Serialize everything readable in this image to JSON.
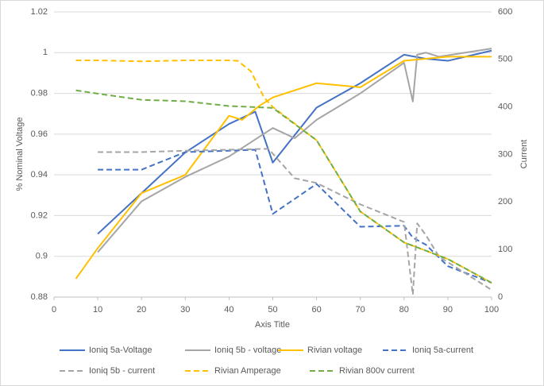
{
  "chart_data": {
    "type": "line",
    "xlabel": "Axis Title",
    "ylabel": "% Nominal Voltage",
    "y2label": "Current",
    "xlim": [
      0,
      100
    ],
    "xticks": [
      0,
      10,
      20,
      30,
      40,
      50,
      60,
      70,
      80,
      90,
      100
    ],
    "ylim": [
      0.88,
      1.02
    ],
    "yticks": [
      0.88,
      0.9,
      0.92,
      0.94,
      0.96,
      0.98,
      1,
      1.02
    ],
    "y2lim": [
      0,
      600
    ],
    "y2ticks": [
      0,
      100,
      200,
      300,
      400,
      500,
      600
    ],
    "grid": true,
    "legend": "bottom",
    "series": [
      {
        "name": "Ioniq 5a-Voltage",
        "color": "#4472c4",
        "dashed": false,
        "x": [
          10,
          20,
          30,
          40,
          46,
          50,
          60,
          70,
          80,
          85,
          90,
          100
        ],
        "values": [
          0.911,
          0.931,
          0.951,
          0.965,
          0.971,
          0.946,
          0.973,
          0.985,
          0.999,
          0.997,
          0.996,
          1.001
        ]
      },
      {
        "name": "Ioniq 5b - voltage",
        "color": "#a5a5a5",
        "dashed": false,
        "x": [
          10,
          20,
          30,
          40,
          50,
          55,
          60,
          70,
          80,
          82,
          83,
          85,
          88,
          100
        ],
        "values": [
          0.902,
          0.927,
          0.939,
          0.949,
          0.963,
          0.958,
          0.967,
          0.98,
          0.995,
          0.976,
          0.999,
          1.0,
          0.998,
          1.002
        ]
      },
      {
        "name": "Rivian voltage",
        "color": "#ffc000",
        "dashed": false,
        "x": [
          5,
          10,
          20,
          30,
          40,
          43,
          47,
          50,
          60,
          70,
          80,
          90,
          100
        ],
        "values": [
          0.889,
          0.904,
          0.931,
          0.94,
          0.969,
          0.967,
          0.974,
          0.978,
          0.985,
          0.983,
          0.996,
          0.998,
          0.998
        ]
      },
      {
        "name": "Ioniq 5a-current",
        "color": "#4472c4",
        "dashed": true,
        "axis": "y2",
        "x": [
          10,
          20,
          30,
          40,
          46,
          50,
          60,
          70,
          80,
          82,
          85,
          90,
          100
        ],
        "values": [
          268,
          268,
          305,
          308,
          310,
          175,
          238,
          148,
          150,
          125,
          110,
          65,
          30
        ]
      },
      {
        "name": "Ioniq 5b - current",
        "color": "#a5a5a5",
        "dashed": true,
        "axis": "y2",
        "x": [
          10,
          20,
          30,
          40,
          49,
          55,
          60,
          70,
          80,
          82,
          83,
          85,
          88,
          100
        ],
        "values": [
          305,
          305,
          308,
          310,
          312,
          250,
          240,
          195,
          158,
          5,
          155,
          130,
          85,
          15
        ]
      },
      {
        "name": "Rivian Amperage",
        "color": "#ffc000",
        "dashed": true,
        "axis": "y2",
        "x": [
          5,
          10,
          20,
          30,
          40,
          42,
          45,
          48,
          50,
          60,
          70,
          80,
          90,
          100
        ],
        "values": [
          498,
          498,
          496,
          498,
          498,
          497,
          475,
          420,
          400,
          330,
          180,
          115,
          80,
          30
        ]
      },
      {
        "name": "Rivian 800v current",
        "color": "#70ad47",
        "dashed": true,
        "axis": "y2",
        "x": [
          5,
          10,
          20,
          30,
          40,
          50,
          60,
          70,
          80,
          90,
          100
        ],
        "values": [
          435,
          428,
          415,
          412,
          402,
          398,
          330,
          180,
          115,
          80,
          30
        ]
      }
    ]
  }
}
